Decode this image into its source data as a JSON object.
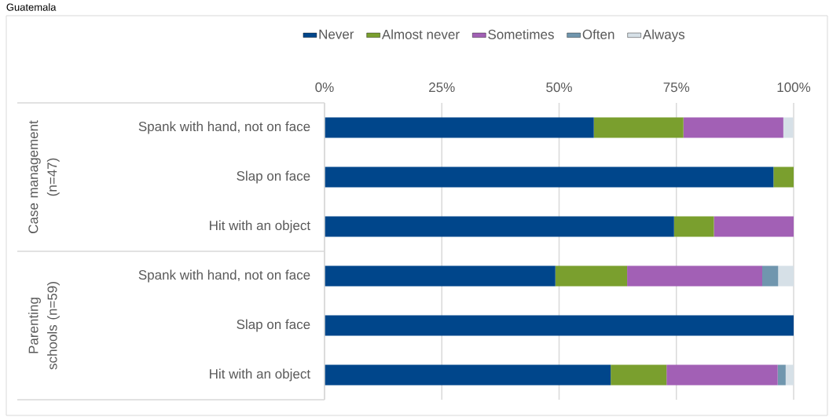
{
  "chart_data": {
    "type": "bar",
    "orientation": "horizontal",
    "stacked": true,
    "title": "Guatemala",
    "categories": [
      "Spank with hand, not on face",
      "Slap on face",
      "Hit with an object",
      "Spank with hand, not on face",
      "Slap on face",
      "Hit with an object"
    ],
    "series": [
      {
        "name": "Never",
        "color": "#00468b",
        "values": [
          57.4,
          95.7,
          74.5,
          49.2,
          100,
          61.0
        ]
      },
      {
        "name": "Almost never",
        "color": "#7a9f2e",
        "values": [
          19.1,
          4.3,
          8.5,
          15.3,
          0,
          11.9
        ]
      },
      {
        "name": "Sometimes",
        "color": "#a260b5",
        "values": [
          21.3,
          0,
          17.0,
          28.8,
          0,
          23.7
        ]
      },
      {
        "name": "Often",
        "color": "#7096ae",
        "values": [
          0,
          0,
          0,
          3.4,
          0,
          1.7
        ]
      },
      {
        "name": "Always",
        "color": "#d6e0e7",
        "values": [
          2.1,
          0,
          0,
          3.4,
          0,
          1.7
        ]
      }
    ],
    "xlim": [
      0,
      100
    ],
    "xticks": [
      {
        "value": 0,
        "label": "0%"
      },
      {
        "value": 25,
        "label": "25%"
      },
      {
        "value": 50,
        "label": "50%"
      },
      {
        "value": 75,
        "label": "75%"
      },
      {
        "value": 100,
        "label": "100%"
      }
    ],
    "grid": "x",
    "legend": "top",
    "annotations": [
      "Case management (n=47)",
      "Parenting schools (n=59)"
    ]
  }
}
